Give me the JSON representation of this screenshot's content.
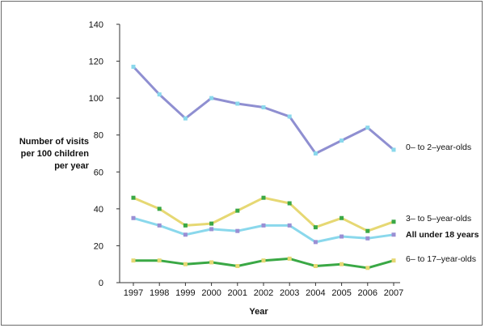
{
  "chart_data": {
    "type": "line",
    "title": "",
    "xlabel": "Year",
    "ylabel": [
      "Number of visits",
      "per 100 children",
      "per year"
    ],
    "x": [
      "1997",
      "1998",
      "1999",
      "2000",
      "2001",
      "2002",
      "2003",
      "2004",
      "2005",
      "2006",
      "2007"
    ],
    "ylim": [
      0,
      140
    ],
    "yticks": [
      "0",
      "20",
      "40",
      "60",
      "80",
      "100",
      "120",
      "140"
    ],
    "grid": false,
    "series": [
      {
        "name": "0– to 2–year-olds",
        "bold": false,
        "line_color": "#8f8fd1",
        "marker_color": "#8ad8ec",
        "values": [
          117,
          102,
          89,
          100,
          97,
          95,
          90,
          70,
          77,
          84,
          72
        ]
      },
      {
        "name": "3– to 5–year-olds",
        "bold": false,
        "line_color": "#e6d873",
        "marker_color": "#3aa845",
        "values": [
          46,
          40,
          31,
          32,
          39,
          46,
          43,
          30,
          35,
          28,
          33
        ]
      },
      {
        "name": "All under 18 years",
        "bold": true,
        "line_color": "#8ad8ec",
        "marker_color": "#9a8fd4",
        "values": [
          35,
          31,
          26,
          29,
          28,
          31,
          31,
          22,
          25,
          24,
          26
        ]
      },
      {
        "name": "6– to 17–year-olds",
        "bold": false,
        "line_color": "#3aa845",
        "marker_color": "#e6d873",
        "values": [
          12,
          12,
          10,
          11,
          9,
          12,
          13,
          9,
          10,
          8,
          12
        ]
      }
    ]
  }
}
